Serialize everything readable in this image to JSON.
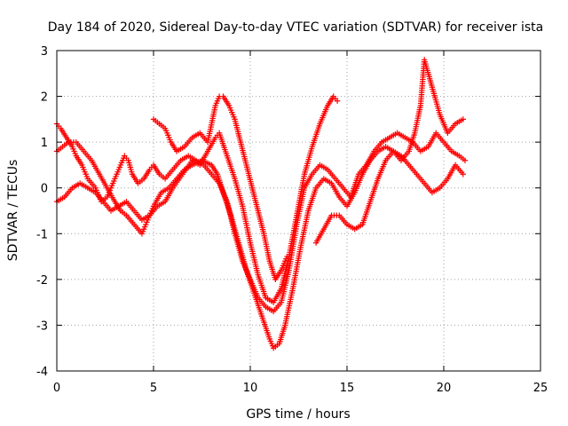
{
  "chart_data": {
    "type": "scatter",
    "title": "Day 184 of 2020, Sidereal Day-to-day VTEC variation (SDTVAR) for receiver ista",
    "xlabel": "GPS time / hours",
    "ylabel": "SDTVAR / TECUs",
    "xlim": [
      0,
      25
    ],
    "ylim": [
      -4,
      3
    ],
    "xticks": [
      "0",
      "5",
      "10",
      "15",
      "20",
      "25"
    ],
    "yticks": [
      "-4",
      "-3",
      "-2",
      "-1",
      "0",
      "1",
      "2",
      "3"
    ],
    "grid": true,
    "marker": "+",
    "color": "#ff0000",
    "series": [
      {
        "x": [
          0.0,
          0.2,
          0.5,
          0.8,
          1.0,
          1.3,
          1.6,
          2.0,
          2.3,
          2.6,
          2.9,
          3.2,
          3.5,
          3.7,
          3.9,
          4.2,
          4.5,
          4.8,
          5.0,
          5.3,
          5.6,
          6.0,
          6.4,
          6.8,
          7.2,
          7.6,
          8.0,
          8.4,
          8.8,
          9.2,
          9.6,
          10.0,
          10.4,
          10.8,
          11.2,
          11.6,
          12.0,
          12.4,
          12.8,
          13.2,
          13.6,
          14.0,
          14.4,
          14.8,
          15.2,
          15.6,
          16.0,
          16.4,
          16.8,
          17.2,
          17.6,
          18.0,
          18.4,
          18.8,
          19.2,
          19.6,
          20.0,
          20.4,
          20.8,
          21.1
        ],
        "y": [
          1.4,
          1.3,
          1.1,
          0.9,
          0.7,
          0.5,
          0.2,
          0.0,
          -0.3,
          -0.2,
          0.1,
          0.4,
          0.7,
          0.6,
          0.3,
          0.1,
          0.2,
          0.4,
          0.5,
          0.3,
          0.2,
          0.4,
          0.6,
          0.7,
          0.6,
          0.5,
          0.3,
          0.1,
          -0.3,
          -1.0,
          -1.6,
          -2.0,
          -2.4,
          -2.6,
          -2.7,
          -2.5,
          -1.8,
          -0.8,
          0.0,
          0.3,
          0.5,
          0.4,
          0.2,
          0.0,
          -0.2,
          0.3,
          0.5,
          0.8,
          1.0,
          1.1,
          1.2,
          1.1,
          1.0,
          0.8,
          0.9,
          1.2,
          1.0,
          0.8,
          0.7,
          0.6
        ]
      },
      {
        "x": [
          0.0,
          0.3,
          0.6,
          1.0,
          1.4,
          1.8,
          2.2,
          2.6,
          3.0,
          3.3,
          3.6,
          4.0,
          4.4,
          4.7,
          5.0,
          5.4,
          5.8,
          6.2,
          6.6,
          7.0,
          7.5,
          8.0,
          8.3,
          8.6,
          9.0,
          9.4,
          9.8,
          10.2,
          10.6,
          11.0,
          11.2,
          11.5,
          11.8,
          12.2,
          12.6,
          13.0,
          13.4,
          13.8,
          14.2,
          14.6,
          15.0,
          15.4,
          15.8,
          16.2,
          16.6,
          17.0,
          17.4,
          17.8,
          18.2,
          18.5,
          18.8,
          19.0,
          19.4,
          19.8,
          20.2,
          20.6,
          21.0
        ],
        "y": [
          0.8,
          0.9,
          1.0,
          1.0,
          0.8,
          0.6,
          0.3,
          0.0,
          -0.3,
          -0.5,
          -0.6,
          -0.8,
          -1.0,
          -0.7,
          -0.4,
          -0.1,
          0.0,
          0.2,
          0.4,
          0.5,
          0.6,
          0.5,
          0.3,
          -0.1,
          -0.6,
          -1.2,
          -1.8,
          -2.3,
          -2.8,
          -3.3,
          -3.5,
          -3.4,
          -3.0,
          -2.2,
          -1.3,
          -0.5,
          0.0,
          0.2,
          0.1,
          -0.2,
          -0.4,
          -0.1,
          0.3,
          0.6,
          0.8,
          0.9,
          0.8,
          0.6,
          0.8,
          1.2,
          1.8,
          2.8,
          2.2,
          1.6,
          1.2,
          1.4,
          1.5
        ]
      },
      {
        "x": [
          0.0,
          0.4,
          0.8,
          1.2,
          1.6,
          2.0,
          2.4,
          2.8,
          3.2,
          3.6,
          4.0,
          4.4,
          4.8,
          5.2,
          5.6,
          6.0,
          6.5,
          7.0,
          7.4,
          7.8,
          8.2,
          8.4,
          8.8,
          9.2,
          9.6,
          10.0,
          10.4,
          10.8,
          11.2,
          11.6,
          12.0,
          12.4,
          12.8,
          13.2,
          13.6,
          14.0,
          14.3,
          14.5
        ],
        "y": [
          -0.3,
          -0.2,
          0.0,
          0.1,
          0.0,
          -0.1,
          -0.3,
          -0.5,
          -0.4,
          -0.3,
          -0.5,
          -0.7,
          -0.6,
          -0.4,
          -0.3,
          0.0,
          0.3,
          0.6,
          0.5,
          0.8,
          1.1,
          1.2,
          0.7,
          0.2,
          -0.4,
          -1.2,
          -1.9,
          -2.4,
          -2.5,
          -2.2,
          -1.5,
          -0.6,
          0.3,
          0.9,
          1.4,
          1.8,
          2.0,
          1.9
        ]
      },
      {
        "x": [
          5.0,
          5.3,
          5.6,
          5.9,
          6.2,
          6.6,
          7.0,
          7.4,
          7.8,
          8.2,
          8.4,
          8.6,
          8.9,
          9.2,
          9.5,
          9.8,
          10.1,
          10.4,
          10.7,
          11.0,
          11.3,
          11.6,
          11.9
        ],
        "y": [
          1.5,
          1.4,
          1.3,
          1.0,
          0.8,
          0.9,
          1.1,
          1.2,
          1.0,
          1.8,
          2.0,
          2.0,
          1.8,
          1.5,
          1.0,
          0.5,
          0.0,
          -0.5,
          -1.0,
          -1.6,
          -2.0,
          -1.8,
          -1.5
        ]
      },
      {
        "x": [
          13.4,
          13.8,
          14.2,
          14.6,
          15.0,
          15.4,
          15.8,
          16.2,
          16.6,
          17.0,
          17.4,
          17.8,
          18.2,
          18.6,
          19.0,
          19.4,
          19.8,
          20.2,
          20.6,
          21.0
        ],
        "y": [
          -1.2,
          -0.9,
          -0.6,
          -0.6,
          -0.8,
          -0.9,
          -0.8,
          -0.3,
          0.2,
          0.6,
          0.8,
          0.7,
          0.5,
          0.3,
          0.1,
          -0.1,
          0.0,
          0.2,
          0.5,
          0.3
        ]
      }
    ]
  }
}
